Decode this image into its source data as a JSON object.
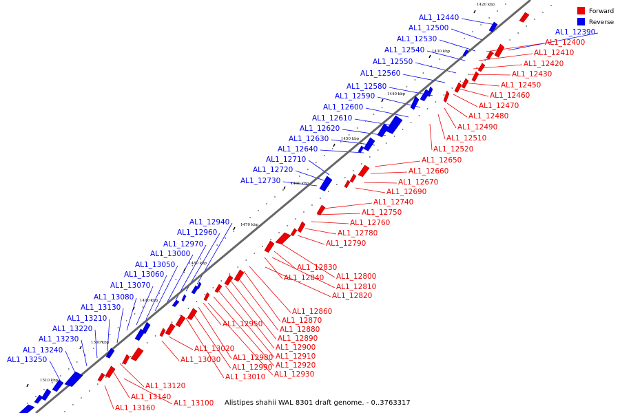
{
  "caption": "Alistipes shahii WAL 8301 draft genome. - 0..3763317",
  "colors": {
    "forward": "#ee0000",
    "reverse": "#0000ee",
    "backbone": "#666666"
  },
  "legend": [
    {
      "key": "forward",
      "label": "Forward"
    },
    {
      "key": "reverse",
      "label": "Reverse"
    }
  ],
  "ticks": [
    "1420 kbp",
    "1430 kbp",
    "1440 kbp",
    "1450 kbp",
    "1460 kbp",
    "1470 kbp",
    "1480 kbp",
    "1490 kbp",
    "1500 kbp",
    "1510 kbp"
  ],
  "reverse_genes": [
    "AL1_12390",
    "AL1_12440",
    "AL1_12500",
    "AL1_12530",
    "AL1_12540",
    "AL1_12550",
    "AL1_12560",
    "AL1_12580",
    "AL1_12590",
    "AL1_12600",
    "AL1_12610",
    "AL1_12620",
    "AL1_12630",
    "AL1_12640",
    "AL1_12710",
    "AL1_12720",
    "AL1_12730",
    "AL1_12940",
    "AL1_12960",
    "AL1_12970",
    "AL1_13000",
    "AL1_13050",
    "AL1_13060",
    "AL1_13070",
    "AL1_13080",
    "AL1_13130",
    "AL1_13210",
    "AL1_13220",
    "AL1_13230",
    "AL1_13240",
    "AL1_13250"
  ],
  "forward_genes": [
    "AL1_12400",
    "AL1_12410",
    "AL1_12420",
    "AL1_12430",
    "AL1_12450",
    "AL1_12460",
    "AL1_12470",
    "AL1_12480",
    "AL1_12490",
    "AL1_12510",
    "AL1_12520",
    "AL1_12650",
    "AL1_12660",
    "AL1_12670",
    "AL1_12690",
    "AL1_12740",
    "AL1_12750",
    "AL1_12760",
    "AL1_12780",
    "AL1_12790",
    "AL1_12830",
    "AL1_12840",
    "AL1_12800",
    "AL1_12810",
    "AL1_12820",
    "AL1_12860",
    "AL1_12870",
    "AL1_12880",
    "AL1_12890",
    "AL1_12900",
    "AL1_12910",
    "AL1_12920",
    "AL1_12930",
    "AL1_12950",
    "AL1_12980",
    "AL1_12990",
    "AL1_13010",
    "AL1_13020",
    "AL1_13030",
    "AL1_13120",
    "AL1_13140",
    "AL1_13100",
    "AL1_13160"
  ]
}
